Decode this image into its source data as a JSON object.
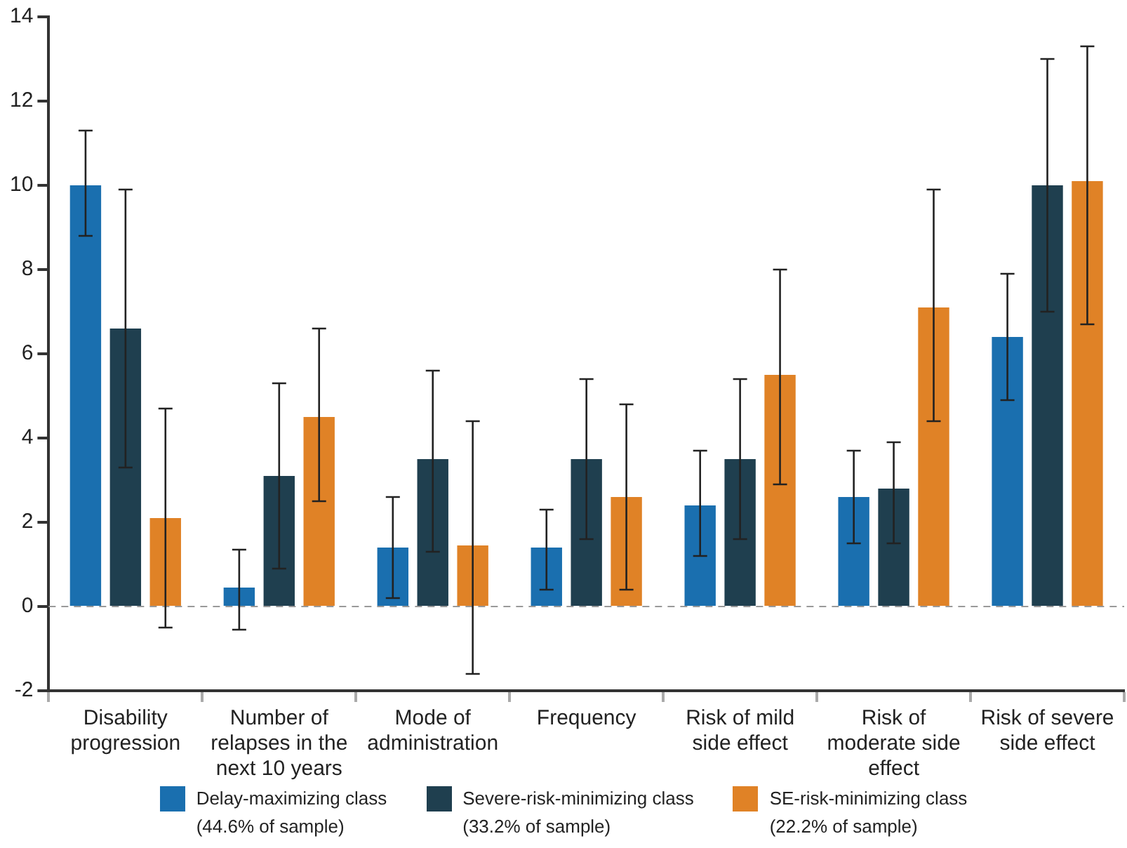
{
  "chart_data": {
    "type": "bar",
    "categories": [
      "Disability progression",
      "Number of relapses in the next 10 years",
      "Mode of administration",
      "Frequency",
      "Risk of mild side effect",
      "Risk of moderate side effect",
      "Risk of severe side effect"
    ],
    "series": [
      {
        "name": "Delay-maximizing class (44.6% of sample)",
        "color": "#1a6faf",
        "values": [
          10.0,
          0.45,
          1.4,
          1.4,
          2.4,
          2.6,
          6.4
        ],
        "errors": [
          [
            8.8,
            11.3
          ],
          [
            -0.55,
            1.35
          ],
          [
            0.2,
            2.6
          ],
          [
            0.4,
            2.3
          ],
          [
            1.2,
            3.7
          ],
          [
            1.5,
            3.7
          ],
          [
            4.9,
            7.9
          ]
        ]
      },
      {
        "name": "Severe-risk-minimizing class (33.2% of sample)",
        "color": "#1f3f4f",
        "values": [
          6.6,
          3.1,
          3.5,
          3.5,
          3.5,
          2.8,
          10.0
        ],
        "errors": [
          [
            3.3,
            9.9
          ],
          [
            0.9,
            5.3
          ],
          [
            1.3,
            5.6
          ],
          [
            1.6,
            5.4
          ],
          [
            1.6,
            5.4
          ],
          [
            1.5,
            3.9
          ],
          [
            7.0,
            13.0
          ]
        ]
      },
      {
        "name": "SE-risk-minimizing class (22.2% of sample)",
        "color": "#e08226",
        "values": [
          2.1,
          4.5,
          1.45,
          2.6,
          5.5,
          7.1,
          10.1
        ],
        "errors": [
          [
            -0.5,
            4.7
          ],
          [
            2.5,
            6.6
          ],
          [
            -1.6,
            4.4
          ],
          [
            0.4,
            4.8
          ],
          [
            2.9,
            8.0
          ],
          [
            4.4,
            9.9
          ],
          [
            6.7,
            13.3
          ]
        ]
      }
    ],
    "ylim": [
      -2,
      14
    ],
    "yticks": [
      -2,
      0,
      2,
      4,
      6,
      8,
      10,
      12,
      14
    ],
    "ref_lines": [
      {
        "axis": "y",
        "value": 0,
        "color": "#999999",
        "line_style": "dashed"
      }
    ],
    "grid": false,
    "legend": "bottom"
  }
}
